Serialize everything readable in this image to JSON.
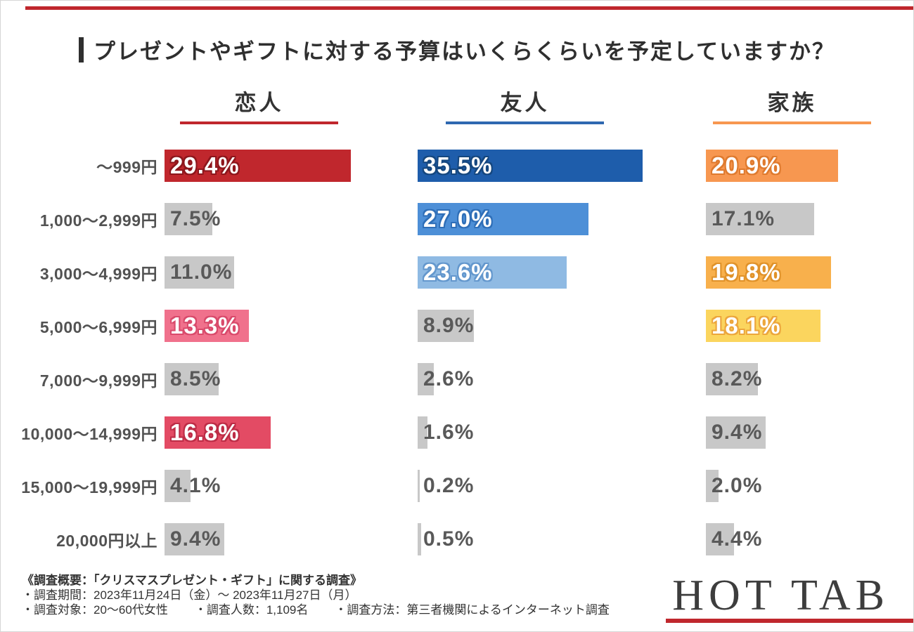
{
  "header": {
    "title": "プレゼントやギフトに対する予算はいくらくらいを予定していますか？"
  },
  "chart_data": {
    "type": "bar",
    "orientation": "horizontal",
    "value_unit": "%",
    "xlim": [
      0,
      36
    ],
    "grid": false,
    "categories": [
      "～999円",
      "1,000～2,999円",
      "3,000～4,999円",
      "5,000～6,999円",
      "7,000～9,999円",
      "10,000～14,999円",
      "15,000～19,999円",
      "20,000円以上"
    ],
    "series": [
      {
        "name": "恋人",
        "accent": "#c0272d",
        "bars": [
          {
            "value": 29.4,
            "label": "29.4%",
            "color": "#c0272d",
            "highlight": true,
            "outline": "#8d161c"
          },
          {
            "value": 7.5,
            "label": "7.5%",
            "color": "#c8c8c8",
            "highlight": false
          },
          {
            "value": 11.0,
            "label": "11.0%",
            "color": "#c8c8c8",
            "highlight": false
          },
          {
            "value": 13.3,
            "label": "13.3%",
            "color": "#f0718c",
            "highlight": true,
            "outline": "#d94a6b"
          },
          {
            "value": 8.5,
            "label": "8.5%",
            "color": "#c8c8c8",
            "highlight": false
          },
          {
            "value": 16.8,
            "label": "16.8%",
            "color": "#e34b64",
            "highlight": true,
            "outline": "#bd2c46"
          },
          {
            "value": 4.1,
            "label": "4.1%",
            "color": "#c8c8c8",
            "highlight": false
          },
          {
            "value": 9.4,
            "label": "9.4%",
            "color": "#c8c8c8",
            "highlight": false
          }
        ]
      },
      {
        "name": "友人",
        "accent": "#2e68b0",
        "bars": [
          {
            "value": 35.5,
            "label": "35.5%",
            "color": "#1e5dab",
            "highlight": true,
            "outline": "#15477f"
          },
          {
            "value": 27.0,
            "label": "27.0%",
            "color": "#4d8fd7",
            "highlight": true,
            "outline": "#2f6fb8"
          },
          {
            "value": 23.6,
            "label": "23.6%",
            "color": "#8fbae3",
            "highlight": true,
            "outline": "#6397cd"
          },
          {
            "value": 8.9,
            "label": "8.9%",
            "color": "#c8c8c8",
            "highlight": false
          },
          {
            "value": 2.6,
            "label": "2.6%",
            "color": "#c8c8c8",
            "highlight": false
          },
          {
            "value": 1.6,
            "label": "1.6%",
            "color": "#c8c8c8",
            "highlight": false
          },
          {
            "value": 0.2,
            "label": "0.2%",
            "color": "#c8c8c8",
            "highlight": false
          },
          {
            "value": 0.5,
            "label": "0.5%",
            "color": "#c8c8c8",
            "highlight": false
          }
        ]
      },
      {
        "name": "家族",
        "accent": "#f79750",
        "bars": [
          {
            "value": 20.9,
            "label": "20.9%",
            "color": "#f79750",
            "highlight": true,
            "outline": "#df7a2e"
          },
          {
            "value": 17.1,
            "label": "17.1%",
            "color": "#c8c8c8",
            "highlight": false
          },
          {
            "value": 19.8,
            "label": "19.8%",
            "color": "#f8b04c",
            "highlight": true,
            "outline": "#e0922a"
          },
          {
            "value": 18.1,
            "label": "18.1%",
            "color": "#fbd55e",
            "highlight": true,
            "outline": "#eca63c"
          },
          {
            "value": 8.2,
            "label": "8.2%",
            "color": "#c8c8c8",
            "highlight": false
          },
          {
            "value": 9.4,
            "label": "9.4%",
            "color": "#c8c8c8",
            "highlight": false
          },
          {
            "value": 2.0,
            "label": "2.0%",
            "color": "#c8c8c8",
            "highlight": false
          },
          {
            "value": 4.4,
            "label": "4.4%",
            "color": "#c8c8c8",
            "highlight": false
          }
        ]
      }
    ]
  },
  "footer": {
    "overview": "《調査概要：「クリスマスプレゼント・ギフト」に関する調査》",
    "period": "・調査期間：2023年11月24日（金）～ 2023年11月27日（月）",
    "target": "・調査対象：20～60代女性",
    "respondents": "・調査人数：1,109名",
    "method": "・調査方法：第三者機関によるインターネット調査",
    "logo": "HOT TAB"
  },
  "colors": {
    "accent_red": "#c0272d",
    "bar_gray": "#c8c8c8",
    "value_text_gray": "#595959"
  }
}
